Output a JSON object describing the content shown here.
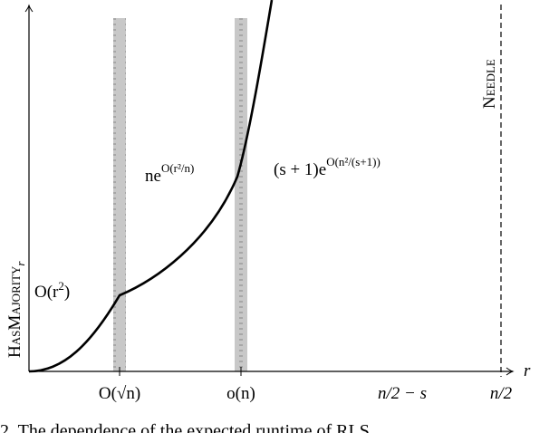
{
  "axes": {
    "y_label": {
      "text": "HasMajority",
      "sub": "r"
    },
    "x_label": "r"
  },
  "threshold_label": "Needle",
  "x_labels": [
    "O(√n)",
    "o(n)",
    "n/2 − s",
    "n/2"
  ],
  "curve_labels": [
    {
      "base": "O(r",
      "sup": "2",
      "end": ")"
    },
    {
      "base": "ne",
      "sup": "O(r²/n)"
    },
    {
      "base": "(s + 1)e",
      "sup": "O(n²/(s+1))"
    }
  ],
  "caption": "2.   The dependence of the expected runtime of RLS"
}
